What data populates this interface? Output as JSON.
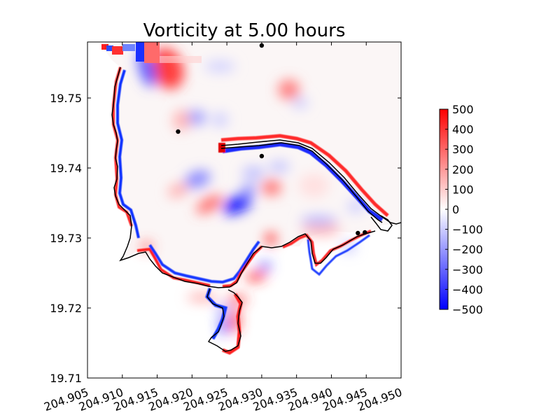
{
  "chart_data": {
    "type": "heatmap",
    "title": "Vorticity at 5.00 hours",
    "xlabel": "",
    "ylabel": "",
    "xlim": [
      204.905,
      204.95
    ],
    "ylim": [
      19.71,
      19.758
    ],
    "x_ticks": [
      "204.905",
      "204.910",
      "204.915",
      "204.920",
      "204.925",
      "204.930",
      "204.935",
      "204.940",
      "204.945",
      "204.950"
    ],
    "x_tick_values": [
      204.905,
      204.91,
      204.915,
      204.92,
      204.925,
      204.93,
      204.935,
      204.94,
      204.945,
      204.95
    ],
    "y_ticks": [
      "19.71",
      "19.72",
      "19.73",
      "19.74",
      "19.75"
    ],
    "y_tick_values": [
      19.71,
      19.72,
      19.73,
      19.74,
      19.75
    ],
    "colorbar": {
      "min": -500,
      "max": 500,
      "ticks": [
        "500",
        "400",
        "300",
        "200",
        "100",
        "0",
        "−100",
        "−200",
        "−300",
        "−400",
        "−500"
      ],
      "tick_values": [
        500,
        400,
        300,
        200,
        100,
        0,
        -100,
        -200,
        -300,
        -400,
        -500
      ],
      "colors": [
        "#0000ff",
        "#ffffff",
        "#ff0000"
      ]
    },
    "points": [
      {
        "x": 204.93,
        "y": 19.7575
      },
      {
        "x": 204.918,
        "y": 19.7452
      },
      {
        "x": 204.93,
        "y": 19.7417
      },
      {
        "x": 204.9438,
        "y": 19.7307
      },
      {
        "x": 204.9448,
        "y": 19.7308
      }
    ],
    "blobs": [
      {
        "x": 204.9165,
        "y": 19.7542,
        "rx": 0.0022,
        "ry": 0.003,
        "value": 380,
        "rot": -20
      },
      {
        "x": 204.9135,
        "y": 19.7543,
        "rx": 0.0011,
        "ry": 0.0028,
        "value": -320,
        "rot": -15
      },
      {
        "x": 204.924,
        "y": 19.7545,
        "rx": 0.0022,
        "ry": 0.0008,
        "value": -90,
        "rot": 0
      },
      {
        "x": 204.9205,
        "y": 19.7472,
        "rx": 0.0015,
        "ry": 0.001,
        "value": -200,
        "rot": 0
      },
      {
        "x": 204.9185,
        "y": 19.7468,
        "rx": 0.0012,
        "ry": 0.0015,
        "value": 150,
        "rot": 0
      },
      {
        "x": 204.924,
        "y": 19.7469,
        "rx": 0.0011,
        "ry": 0.001,
        "value": -100,
        "rot": 0
      },
      {
        "x": 204.9339,
        "y": 19.7512,
        "rx": 0.0015,
        "ry": 0.0014,
        "value": 260,
        "rot": 0
      },
      {
        "x": 204.9355,
        "y": 19.7493,
        "rx": 0.0011,
        "ry": 0.0008,
        "value": -100,
        "rot": 0
      },
      {
        "x": 204.9208,
        "y": 19.7384,
        "rx": 0.0019,
        "ry": 0.0011,
        "value": -240,
        "rot": -20
      },
      {
        "x": 204.918,
        "y": 19.7368,
        "rx": 0.0015,
        "ry": 0.0009,
        "value": 160,
        "rot": -20
      },
      {
        "x": 204.9265,
        "y": 19.7348,
        "rx": 0.0022,
        "ry": 0.0011,
        "value": -470,
        "rot": -25
      },
      {
        "x": 204.9225,
        "y": 19.7348,
        "rx": 0.0021,
        "ry": 0.0009,
        "value": 300,
        "rot": -30
      },
      {
        "x": 204.9281,
        "y": 19.7369,
        "rx": 0.0011,
        "ry": 0.0008,
        "value": -220,
        "rot": -20
      },
      {
        "x": 204.9314,
        "y": 19.7372,
        "rx": 0.0014,
        "ry": 0.0011,
        "value": 280,
        "rot": 0
      },
      {
        "x": 204.9288,
        "y": 19.7393,
        "rx": 0.0016,
        "ry": 0.0009,
        "value": -130,
        "rot": 0
      },
      {
        "x": 204.9325,
        "y": 19.7402,
        "rx": 0.0015,
        "ry": 0.0008,
        "value": -120,
        "rot": 0
      },
      {
        "x": 204.9385,
        "y": 19.7312,
        "rx": 0.0028,
        "ry": 0.0009,
        "value": 140,
        "rot": 0
      },
      {
        "x": 204.9382,
        "y": 19.7325,
        "rx": 0.0026,
        "ry": 0.0007,
        "value": -140,
        "rot": 0
      },
      {
        "x": 204.9435,
        "y": 19.7345,
        "rx": 0.0012,
        "ry": 0.0009,
        "value": -100,
        "rot": 0
      },
      {
        "x": 204.9375,
        "y": 19.7375,
        "rx": 0.0022,
        "ry": 0.0017,
        "value": 60,
        "rot": 0
      },
      {
        "x": 204.9313,
        "y": 19.7299,
        "rx": 0.0007,
        "ry": 0.0008,
        "value": 500,
        "rot": 0
      },
      {
        "x": 204.9292,
        "y": 19.7245,
        "rx": 0.0015,
        "ry": 0.0006,
        "value": 420,
        "rot": -10
      },
      {
        "x": 204.9305,
        "y": 19.726,
        "rx": 0.0009,
        "ry": 0.0005,
        "value": -350,
        "rot": 0
      },
      {
        "x": 204.9265,
        "y": 19.7212,
        "rx": 0.0015,
        "ry": 0.0005,
        "value": 380,
        "rot": 0
      },
      {
        "x": 204.9245,
        "y": 19.7198,
        "rx": 0.0011,
        "ry": 0.0004,
        "value": -280,
        "rot": 0
      },
      {
        "x": 204.9262,
        "y": 19.7182,
        "rx": 0.0006,
        "ry": 0.0018,
        "value": 400,
        "rot": 0
      },
      {
        "x": 204.9245,
        "y": 19.7175,
        "rx": 0.0005,
        "ry": 0.0013,
        "value": -420,
        "rot": 0
      },
      {
        "x": 204.9215,
        "y": 19.7215,
        "rx": 0.0022,
        "ry": 0.0005,
        "value": 200,
        "rot": 0
      },
      {
        "x": 204.9135,
        "y": 19.7288,
        "rx": 0.0008,
        "ry": 0.0006,
        "value": 350,
        "rot": 0
      },
      {
        "x": 204.9425,
        "y": 19.7287,
        "rx": 0.0009,
        "ry": 0.0007,
        "value": -150,
        "rot": 0
      }
    ]
  }
}
